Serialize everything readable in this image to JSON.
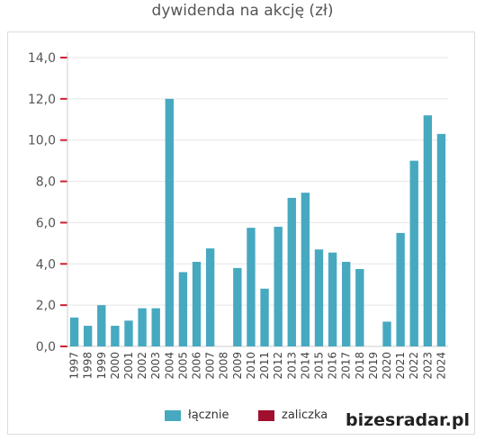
{
  "chart_data": {
    "type": "bar",
    "title": "dywidenda na akcję (zł)",
    "categories": [
      "1997",
      "1998",
      "1999",
      "2000",
      "2001",
      "2002",
      "2003",
      "2004",
      "2005",
      "2006",
      "2007",
      "2008",
      "2009",
      "2010",
      "2011",
      "2012",
      "2013",
      "2014",
      "2015",
      "2016",
      "2017",
      "2018",
      "2019",
      "2020",
      "2021",
      "2022",
      "2023",
      "2024"
    ],
    "series": [
      {
        "name": "łącznie",
        "color": "#46a9c0",
        "values": [
          1.4,
          1.0,
          2.0,
          1.0,
          1.25,
          1.85,
          1.85,
          12.0,
          3.6,
          4.1,
          4.75,
          0,
          3.8,
          5.75,
          2.8,
          5.8,
          7.2,
          7.45,
          4.7,
          4.55,
          4.1,
          3.75,
          0,
          1.2,
          5.5,
          9.0,
          11.2,
          10.3
        ]
      },
      {
        "name": "zaliczka",
        "color": "#a0102e",
        "values": [
          0,
          0,
          0,
          0,
          0,
          0,
          0,
          0,
          0,
          0,
          0,
          0,
          0,
          0,
          0,
          0,
          0,
          0,
          0,
          0,
          0,
          0,
          0,
          0,
          0,
          0,
          0,
          0
        ]
      }
    ],
    "yticks": [
      "0,0",
      "2,0",
      "4,0",
      "6,0",
      "8,0",
      "10,0",
      "12,0",
      "14,0"
    ],
    "ylim": [
      0,
      14
    ],
    "grid": true,
    "legend": "bottom"
  },
  "brand": "bizesradar.pl"
}
